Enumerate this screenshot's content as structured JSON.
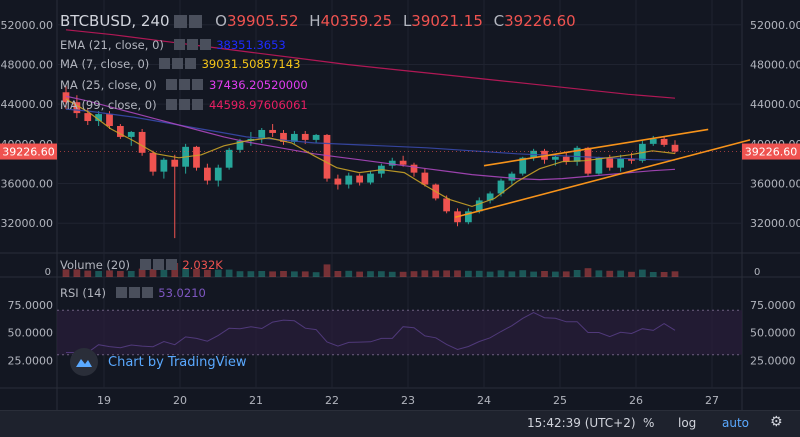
{
  "header": {
    "symbol": "BTCBUSD, 240",
    "open_key": "O",
    "open": "39905.52",
    "high_key": "H",
    "high": "40359.25",
    "low_key": "L",
    "low": "39021.15",
    "close_key": "C",
    "close": "39226.60"
  },
  "indicators": [
    {
      "label": "EMA (21, close, 0)",
      "value": "38351.3653",
      "color": "#1e2bff"
    },
    {
      "label": "MA (7, close, 0)",
      "value": "39031.50857143",
      "color": "#f5c518"
    },
    {
      "label": "MA (25, close, 0)",
      "value": "37436.20520000",
      "color": "#e23df0"
    },
    {
      "label": "MA (99, close, 0)",
      "value": "44598.97606061",
      "color": "#e91e63"
    }
  ],
  "volume": {
    "label": "Volume (20)",
    "value": "2.032K",
    "value_color": "#ef5350"
  },
  "rsi": {
    "label": "RSI (14)",
    "value": "53.0210",
    "value_color": "#7e57c2"
  },
  "watermark": "Chart by TradingView",
  "status": {
    "time": "15:42:39 (UTC+2)",
    "percent": "%",
    "log": "log",
    "auto": "auto"
  },
  "chart_data": {
    "type": "candlestick",
    "price_axis": {
      "ticks": [
        52000,
        48000,
        44000,
        40000,
        36000,
        32000
      ],
      "tick_labels": [
        "52000.00",
        "48000.00",
        "44000.00",
        "40000.00",
        "36000.00",
        "32000.00"
      ],
      "ylim": [
        29000,
        54500
      ],
      "last_price": "39226.60"
    },
    "x_axis": {
      "labels": [
        "19",
        "20",
        "21",
        "22",
        "23",
        "24",
        "25",
        "26",
        "27"
      ]
    },
    "volume_axis": {
      "tick_labels": [
        "0",
        "0"
      ]
    },
    "rsi_axis": {
      "ticks": [
        75,
        50,
        25
      ],
      "tick_labels": [
        "75.0000",
        "50.0000",
        "25.0000"
      ],
      "ylim": [
        0,
        100
      ],
      "band": [
        30,
        70
      ]
    },
    "candles": [
      [
        45200,
        45800,
        43500,
        44200
      ],
      [
        44200,
        44900,
        42600,
        43100
      ],
      [
        43100,
        43600,
        41900,
        42300
      ],
      [
        42300,
        43300,
        41800,
        43000
      ],
      [
        43000,
        43300,
        41500,
        41800
      ],
      [
        41800,
        42000,
        40500,
        40700
      ],
      [
        40700,
        41300,
        39800,
        41200
      ],
      [
        41200,
        41500,
        38800,
        39100
      ],
      [
        39100,
        39300,
        36800,
        37200
      ],
      [
        37200,
        38600,
        36500,
        38400
      ],
      [
        38400,
        38900,
        30500,
        37700
      ],
      [
        37700,
        40000,
        37000,
        39700
      ],
      [
        39700,
        39800,
        37300,
        37600
      ],
      [
        37600,
        38000,
        35900,
        36300
      ],
      [
        36300,
        37900,
        35700,
        37600
      ],
      [
        37600,
        39600,
        37400,
        39400
      ],
      [
        39400,
        40500,
        39100,
        40300
      ],
      [
        40300,
        41200,
        39800,
        40500
      ],
      [
        40500,
        41600,
        40100,
        41400
      ],
      [
        41400,
        42000,
        40700,
        41100
      ],
      [
        41100,
        41400,
        39900,
        40200
      ],
      [
        40200,
        41300,
        40000,
        41000
      ],
      [
        41000,
        41300,
        40000,
        40400
      ],
      [
        40400,
        41000,
        40100,
        40900
      ],
      [
        40900,
        41000,
        36200,
        36500
      ],
      [
        36500,
        36900,
        35400,
        35900
      ],
      [
        35900,
        37100,
        35500,
        36800
      ],
      [
        36800,
        37000,
        35800,
        36100
      ],
      [
        36100,
        37300,
        35900,
        37000
      ],
      [
        37000,
        38000,
        36600,
        37800
      ],
      [
        37800,
        38600,
        37500,
        38300
      ],
      [
        38300,
        38800,
        37700,
        37900
      ],
      [
        37900,
        38100,
        36700,
        37100
      ],
      [
        37100,
        37500,
        35700,
        35900
      ],
      [
        35900,
        36000,
        34300,
        34500
      ],
      [
        34500,
        34800,
        33000,
        33200
      ],
      [
        33200,
        33500,
        31700,
        32100
      ],
      [
        32100,
        33500,
        31900,
        33200
      ],
      [
        33200,
        34600,
        33000,
        34300
      ],
      [
        34300,
        35200,
        34000,
        35000
      ],
      [
        35000,
        36500,
        34700,
        36300
      ],
      [
        36300,
        37200,
        35900,
        37000
      ],
      [
        37000,
        38700,
        36800,
        38600
      ],
      [
        38600,
        39500,
        38300,
        39300
      ],
      [
        39300,
        39500,
        38000,
        38400
      ],
      [
        38400,
        39000,
        37800,
        38700
      ],
      [
        38700,
        39200,
        37900,
        38200
      ],
      [
        38200,
        39800,
        37800,
        39600
      ],
      [
        39600,
        39700,
        36800,
        37000
      ],
      [
        37000,
        38700,
        36900,
        38600
      ],
      [
        38600,
        38900,
        37300,
        37600
      ],
      [
        37600,
        38900,
        37200,
        38500
      ],
      [
        38500,
        39100,
        38000,
        38300
      ],
      [
        38300,
        40300,
        38100,
        40000
      ],
      [
        40000,
        40800,
        39800,
        40500
      ],
      [
        40500,
        40700,
        39700,
        39900
      ],
      [
        39905.52,
        40359.25,
        39021.15,
        39226.6
      ]
    ],
    "ma_series": {
      "ema21": [
        43500,
        43300,
        43000,
        42700,
        42300,
        41900,
        41500,
        41100,
        40700,
        40500,
        40300,
        40100,
        40000,
        39900,
        39800,
        39700,
        39600,
        39450,
        39300,
        39150,
        39000,
        38900,
        38800,
        38700,
        38600,
        38500,
        38400,
        38350
      ],
      "ma7": [
        44500,
        43200,
        41500,
        40300,
        39000,
        38600,
        38900,
        39800,
        40300,
        40600,
        40100,
        38800,
        37600,
        37100,
        37400,
        37100,
        35700,
        34400,
        33700,
        34500,
        36200,
        37500,
        38200,
        38300,
        38600,
        38900,
        39300,
        39030
      ],
      "ma25": [
        44800,
        44300,
        43700,
        43100,
        42500,
        41900,
        41300,
        40700,
        40200,
        39800,
        39400,
        39000,
        38700,
        38400,
        38100,
        37800,
        37500,
        37200,
        36900,
        36700,
        36500,
        36400,
        36500,
        36700,
        36900,
        37100,
        37300,
        37436
      ],
      "ma99": [
        51500,
        51000,
        50400,
        49800,
        49200,
        48600,
        48000,
        47500,
        47000,
        46500,
        46000,
        45500,
        45000,
        44600
      ]
    },
    "trendlines": [
      {
        "from": {
          "x": 24.0,
          "y": 37800
        },
        "to": {
          "x": 26.95,
          "y": 41450
        }
      },
      {
        "from": {
          "x": 23.62,
          "y": 32600
        },
        "to": {
          "x": 27.5,
          "y": 40400
        }
      }
    ],
    "grid": "on",
    "legend": "top-left"
  }
}
